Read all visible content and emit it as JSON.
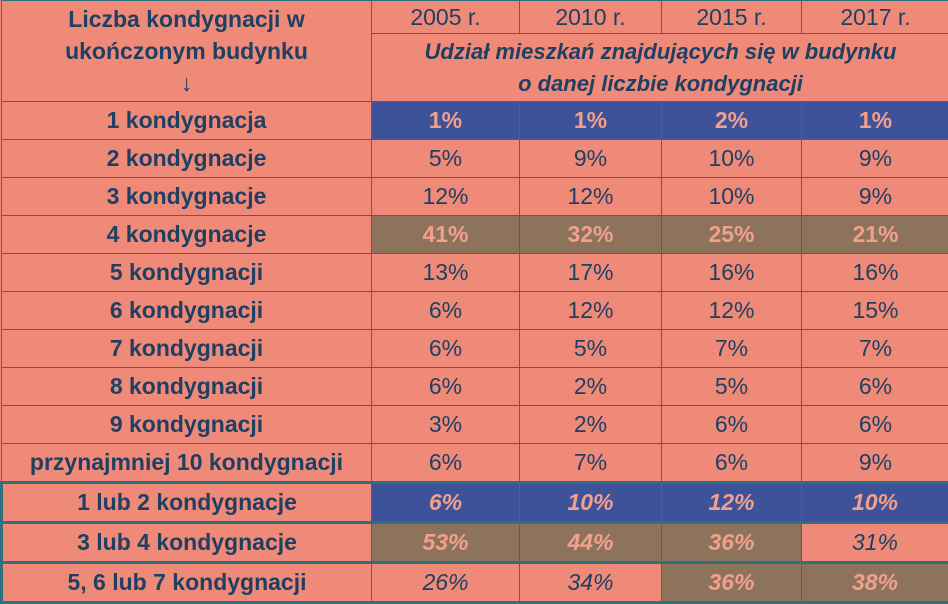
{
  "header": {
    "left_line1": "Liczba kondygnacji w",
    "left_line2": "ukończonym budynku",
    "left_arrow": "↓",
    "years": [
      "2005 r.",
      "2010 r.",
      "2015 r.",
      "2017 r."
    ],
    "subtitle_line1": "Udział mieszkań znajdujących się w budynku",
    "subtitle_line2": "o danej liczbie kondygnacji"
  },
  "rows": [
    {
      "label": "1 kondygnacja",
      "values": [
        "1%",
        "1%",
        "2%",
        "1%"
      ]
    },
    {
      "label": "2 kondygnacje",
      "values": [
        "5%",
        "9%",
        "10%",
        "9%"
      ]
    },
    {
      "label": "3 kondygnacje",
      "values": [
        "12%",
        "12%",
        "10%",
        "9%"
      ]
    },
    {
      "label": "4 kondygnacje",
      "values": [
        "41%",
        "32%",
        "25%",
        "21%"
      ]
    },
    {
      "label": "5 kondygnacji",
      "values": [
        "13%",
        "17%",
        "16%",
        "16%"
      ]
    },
    {
      "label": "6 kondygnacji",
      "values": [
        "6%",
        "12%",
        "12%",
        "15%"
      ]
    },
    {
      "label": "7 kondygnacji",
      "values": [
        "6%",
        "5%",
        "7%",
        "7%"
      ]
    },
    {
      "label": "8 kondygnacji",
      "values": [
        "6%",
        "2%",
        "5%",
        "6%"
      ]
    },
    {
      "label": "9 kondygnacji",
      "values": [
        "3%",
        "2%",
        "6%",
        "6%"
      ]
    },
    {
      "label": "przynajmniej 10 kondygnacji",
      "values": [
        "6%",
        "7%",
        "6%",
        "9%"
      ]
    },
    {
      "label": "1 lub 2 kondygnacje",
      "values": [
        "6%",
        "10%",
        "12%",
        "10%"
      ]
    },
    {
      "label": "3 lub 4 kondygnacje",
      "values": [
        "53%",
        "44%",
        "36%",
        "31%"
      ]
    },
    {
      "label": "5, 6 lub 7 kondygnacji",
      "values": [
        "26%",
        "34%",
        "36%",
        "38%"
      ]
    }
  ],
  "colors": {
    "background": "#f08a78",
    "highlight_blue": "#3e5299",
    "highlight_brown": "#8e735c",
    "text": "#1f3f63",
    "border": "#2e6f80"
  }
}
